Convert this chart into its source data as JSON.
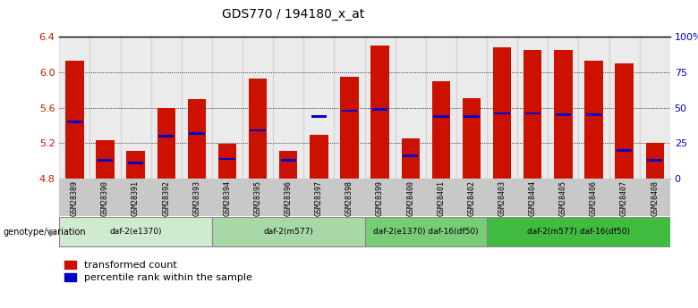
{
  "title": "GDS770 / 194180_x_at",
  "samples": [
    "GSM28389",
    "GSM28390",
    "GSM28391",
    "GSM28392",
    "GSM28393",
    "GSM28394",
    "GSM28395",
    "GSM28396",
    "GSM28397",
    "GSM28398",
    "GSM28399",
    "GSM28400",
    "GSM28401",
    "GSM28402",
    "GSM28403",
    "GSM28404",
    "GSM28405",
    "GSM28406",
    "GSM28407",
    "GSM28408"
  ],
  "transformed_count": [
    6.13,
    5.23,
    5.11,
    5.6,
    5.7,
    5.19,
    5.93,
    5.11,
    5.29,
    5.95,
    6.3,
    5.25,
    5.9,
    5.71,
    6.28,
    6.25,
    6.25,
    6.13,
    6.1,
    5.2
  ],
  "percentile_rank": [
    40,
    13,
    11,
    30,
    32,
    14,
    34,
    13,
    44,
    48,
    49,
    16,
    44,
    44,
    46,
    46,
    45,
    45,
    20,
    13
  ],
  "ylim_left": [
    4.8,
    6.4
  ],
  "ylim_right": [
    0,
    100
  ],
  "yticks_left": [
    4.8,
    5.2,
    5.6,
    6.0,
    6.4
  ],
  "yticks_right": [
    0,
    25,
    50,
    75,
    100
  ],
  "ytick_labels_right": [
    "0",
    "25",
    "50",
    "75",
    "100%"
  ],
  "groups": [
    {
      "label": "daf-2(e1370)",
      "start": 0,
      "end": 5,
      "color": "#d0ead0"
    },
    {
      "label": "daf-2(m577)",
      "start": 5,
      "end": 10,
      "color": "#a8d8a8"
    },
    {
      "label": "daf-2(e1370) daf-16(df50)",
      "start": 10,
      "end": 14,
      "color": "#78cc78"
    },
    {
      "label": "daf-2(m577) daf-16(df50)",
      "start": 14,
      "end": 20,
      "color": "#40bb40"
    }
  ],
  "bar_color_red": "#cc1100",
  "bar_color_blue": "#0000cc",
  "bar_base": 4.8,
  "bar_width": 0.6,
  "genotype_label": "genotype/variation",
  "legend_red": "transformed count",
  "legend_blue": "percentile rank within the sample",
  "title_color": "#000000",
  "left_tick_color": "#cc1100",
  "right_tick_color": "#0000cc",
  "gray_band_color": "#c8c8c8"
}
